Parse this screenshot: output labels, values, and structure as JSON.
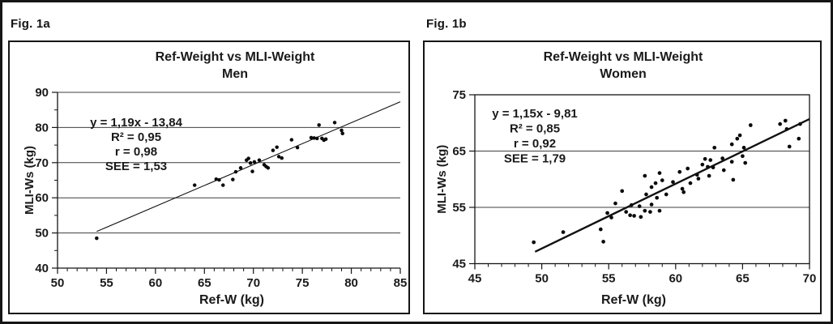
{
  "page": {
    "background": "#ffffff",
    "frame_color": "#161616",
    "grid_color": "#3f3f3f",
    "marker_color": "#0a0a0a"
  },
  "chart_data": [
    {
      "type": "scatter",
      "fig_label": "Fig. 1a",
      "title": "Ref-Weight vs MLI-Weight",
      "subtitle": "Men",
      "xlabel": "Ref-W (kg)",
      "ylabel": "MLI-Ws (kg)",
      "xlim": [
        50,
        85
      ],
      "ylim": [
        40,
        90
      ],
      "x_major_ticks": [
        50,
        55,
        60,
        65,
        70,
        75,
        80,
        85
      ],
      "x_minor_step": 1,
      "y_major_ticks": [
        40,
        50,
        60,
        70,
        80,
        90
      ],
      "y_minor_step": 5,
      "gridlines_y": [
        50,
        60,
        70,
        80,
        90
      ],
      "plot_border": "axes",
      "grid_on": true,
      "legend": "none",
      "annotation_lines": [
        "y = 1,19x - 13,84",
        "R² = 0,95",
        "r = 0,98",
        "SEE = 1,53"
      ],
      "regression": {
        "slope": 1.19,
        "intercept": -13.84,
        "r2": 0.95,
        "r": 0.98,
        "see": 1.53
      },
      "trendline": {
        "x_start": 54,
        "x_end": 85,
        "stroke_width": 1.1
      },
      "marker": {
        "shape": "circle",
        "radius": 2.25
      },
      "points": [
        [
          54.0,
          48.5
        ],
        [
          64.0,
          63.6
        ],
        [
          66.2,
          65.3
        ],
        [
          66.5,
          65.1
        ],
        [
          66.9,
          63.6
        ],
        [
          67.9,
          65.2
        ],
        [
          68.2,
          67.4
        ],
        [
          68.7,
          68.5
        ],
        [
          69.3,
          70.7
        ],
        [
          69.5,
          71.2
        ],
        [
          69.7,
          69.9
        ],
        [
          69.9,
          67.5
        ],
        [
          70.1,
          70.2
        ],
        [
          70.6,
          70.7
        ],
        [
          71.1,
          69.4
        ],
        [
          71.3,
          68.9
        ],
        [
          71.5,
          68.5
        ],
        [
          72.0,
          73.5
        ],
        [
          72.4,
          74.4
        ],
        [
          72.6,
          71.7
        ],
        [
          72.9,
          71.3
        ],
        [
          73.9,
          76.5
        ],
        [
          74.5,
          74.3
        ],
        [
          75.9,
          77.1
        ],
        [
          76.2,
          77.0
        ],
        [
          76.5,
          76.9
        ],
        [
          76.7,
          80.7
        ],
        [
          77.0,
          76.9
        ],
        [
          77.2,
          76.4
        ],
        [
          77.4,
          76.7
        ],
        [
          78.3,
          81.4
        ],
        [
          79.0,
          79.2
        ],
        [
          79.1,
          78.3
        ]
      ]
    },
    {
      "type": "scatter",
      "fig_label": "Fig. 1b",
      "title": "Ref-Weight vs MLI-Weight",
      "subtitle": "Women",
      "xlabel": "Ref-W (kg)",
      "ylabel": "MLI-Ws (kg)",
      "xlim": [
        45,
        70
      ],
      "ylim": [
        45,
        75
      ],
      "x_major_ticks": [
        45,
        50,
        55,
        60,
        65,
        70
      ],
      "x_minor_step": 1,
      "y_major_ticks": [
        45,
        55,
        65,
        75
      ],
      "y_minor_step": null,
      "gridlines_y": [
        55,
        65
      ],
      "plot_border": "full",
      "grid_on": true,
      "legend": "none",
      "annotation_lines": [
        "y = 1,15x - 9,81",
        "R² = 0,85",
        "r = 0,92",
        "SEE = 1,79"
      ],
      "regression": {
        "slope": 1.15,
        "intercept": -9.81,
        "r2": 0.85,
        "r": 0.92,
        "see": 1.79
      },
      "trendline": {
        "x_start": 49.5,
        "x_end": 70,
        "stroke_width": 2.4
      },
      "marker": {
        "shape": "circle",
        "radius": 2.35
      },
      "points": [
        [
          49.4,
          48.8
        ],
        [
          51.6,
          50.6
        ],
        [
          54.4,
          51.1
        ],
        [
          54.6,
          48.9
        ],
        [
          54.9,
          54.0
        ],
        [
          55.2,
          53.2
        ],
        [
          55.5,
          55.7
        ],
        [
          56.0,
          57.9
        ],
        [
          56.3,
          54.2
        ],
        [
          56.6,
          53.6
        ],
        [
          56.7,
          55.4
        ],
        [
          56.9,
          53.5
        ],
        [
          57.3,
          55.2
        ],
        [
          57.4,
          53.3
        ],
        [
          57.7,
          54.4
        ],
        [
          57.7,
          60.6
        ],
        [
          57.8,
          57.3
        ],
        [
          58.1,
          54.2
        ],
        [
          58.2,
          55.5
        ],
        [
          58.2,
          58.6
        ],
        [
          58.5,
          59.3
        ],
        [
          58.6,
          56.7
        ],
        [
          58.8,
          54.4
        ],
        [
          58.8,
          61.1
        ],
        [
          59.0,
          59.8
        ],
        [
          59.3,
          57.3
        ],
        [
          59.8,
          59.5
        ],
        [
          60.3,
          61.3
        ],
        [
          60.5,
          58.3
        ],
        [
          60.6,
          57.7
        ],
        [
          60.9,
          61.9
        ],
        [
          61.1,
          59.3
        ],
        [
          61.6,
          60.8
        ],
        [
          61.7,
          60.1
        ],
        [
          62.0,
          62.6
        ],
        [
          62.2,
          63.6
        ],
        [
          62.4,
          62.2
        ],
        [
          62.6,
          63.4
        ],
        [
          62.5,
          60.6
        ],
        [
          62.8,
          62.1
        ],
        [
          62.9,
          65.6
        ],
        [
          63.5,
          63.7
        ],
        [
          63.6,
          61.6
        ],
        [
          64.2,
          63.1
        ],
        [
          64.2,
          66.2
        ],
        [
          64.3,
          59.9
        ],
        [
          64.6,
          67.2
        ],
        [
          64.8,
          67.8
        ],
        [
          65.0,
          64.1
        ],
        [
          65.1,
          65.6
        ],
        [
          65.2,
          62.9
        ],
        [
          65.6,
          69.6
        ],
        [
          67.8,
          69.8
        ],
        [
          68.2,
          70.4
        ],
        [
          68.3,
          68.9
        ],
        [
          68.5,
          65.8
        ],
        [
          69.2,
          67.2
        ],
        [
          69.3,
          69.8
        ]
      ]
    }
  ]
}
